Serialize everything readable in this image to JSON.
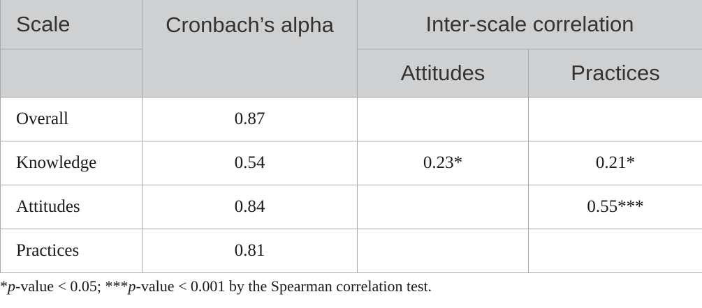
{
  "header": {
    "scale": "Scale",
    "alpha": "Cronbach’s alpha",
    "inter": "Inter-scale correlation",
    "attitudes": "Attitudes",
    "practices": "Practices"
  },
  "rows": [
    {
      "scale": "Overall",
      "alpha": "0.87",
      "attitudes": "",
      "practices": ""
    },
    {
      "scale": "Knowledge",
      "alpha": "0.54",
      "attitudes": "0.23*",
      "practices": "0.21*"
    },
    {
      "scale": "Attitudes",
      "alpha": "0.84",
      "attitudes": "",
      "practices": "0.55***"
    },
    {
      "scale": "Practices",
      "alpha": "0.81",
      "attitudes": "",
      "practices": ""
    }
  ],
  "footnote": {
    "star1": "*",
    "p1": "p",
    "text1": "-value < 0.05; ***",
    "p2": "p",
    "text2": "-value < 0.001 by the Spearman correlation test."
  }
}
